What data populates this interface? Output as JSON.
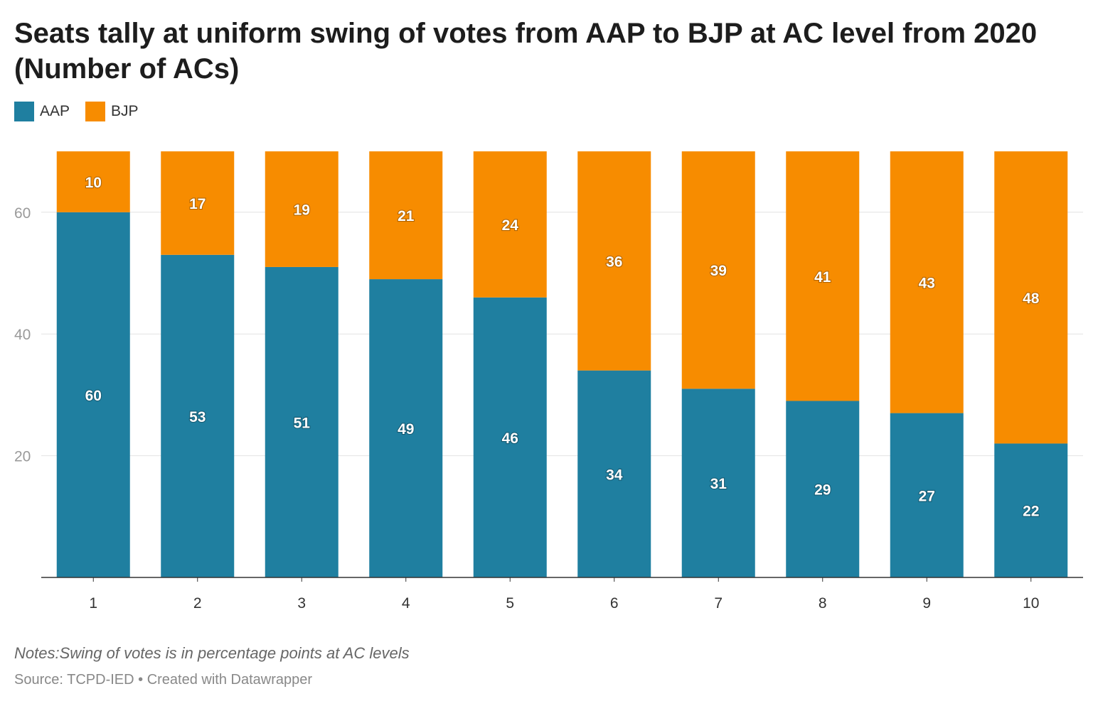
{
  "title": "Seats tally at uniform swing of votes from AAP to BJP at AC level from 2020 (Number of ACs)",
  "notes": "Notes:Swing of votes is in percentage points at AC levels",
  "source": {
    "label": "Source: TCPD-IED",
    "separator": " • ",
    "credit": "Created with Datawrapper"
  },
  "legend": [
    {
      "name": "AAP",
      "color": "#1f7fa0"
    },
    {
      "name": "BJP",
      "color": "#f78c00"
    }
  ],
  "chart_data": {
    "type": "bar",
    "stacked": true,
    "title": "Seats tally at uniform swing of votes from AAP to BJP at AC level from 2020 (Number of ACs)",
    "xlabel": "",
    "ylabel": "",
    "categories": [
      "1",
      "2",
      "3",
      "4",
      "5",
      "6",
      "7",
      "8",
      "9",
      "10"
    ],
    "series": [
      {
        "name": "AAP",
        "color": "#1f7fa0",
        "values": [
          60,
          53,
          51,
          49,
          46,
          34,
          31,
          29,
          27,
          22
        ]
      },
      {
        "name": "BJP",
        "color": "#f78c00",
        "values": [
          10,
          17,
          19,
          21,
          24,
          36,
          39,
          41,
          43,
          48
        ]
      }
    ],
    "ylim": [
      0,
      70
    ],
    "yticks": [
      20,
      40,
      60
    ],
    "grid": true,
    "legend_position": "top-left"
  }
}
